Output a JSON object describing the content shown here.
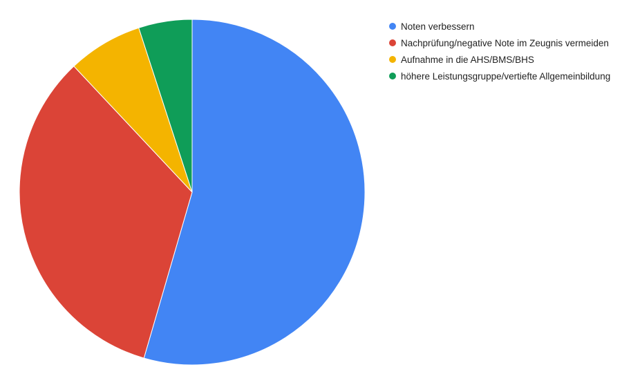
{
  "chart_data": {
    "type": "pie",
    "title": "",
    "categories": [
      "Noten verbessern",
      "Nachprüfung/negative Note im Zeugnis vermeiden",
      "Aufnahme in die AHS/BMS/BHS",
      "höhere Leistungsgruppe/vertiefte Allgemeinbildung"
    ],
    "values": [
      54.5,
      33.5,
      7.0,
      5.0
    ],
    "colors": [
      "#4285f4",
      "#db4437",
      "#f4b400",
      "#0f9d58"
    ],
    "legend": "right"
  }
}
